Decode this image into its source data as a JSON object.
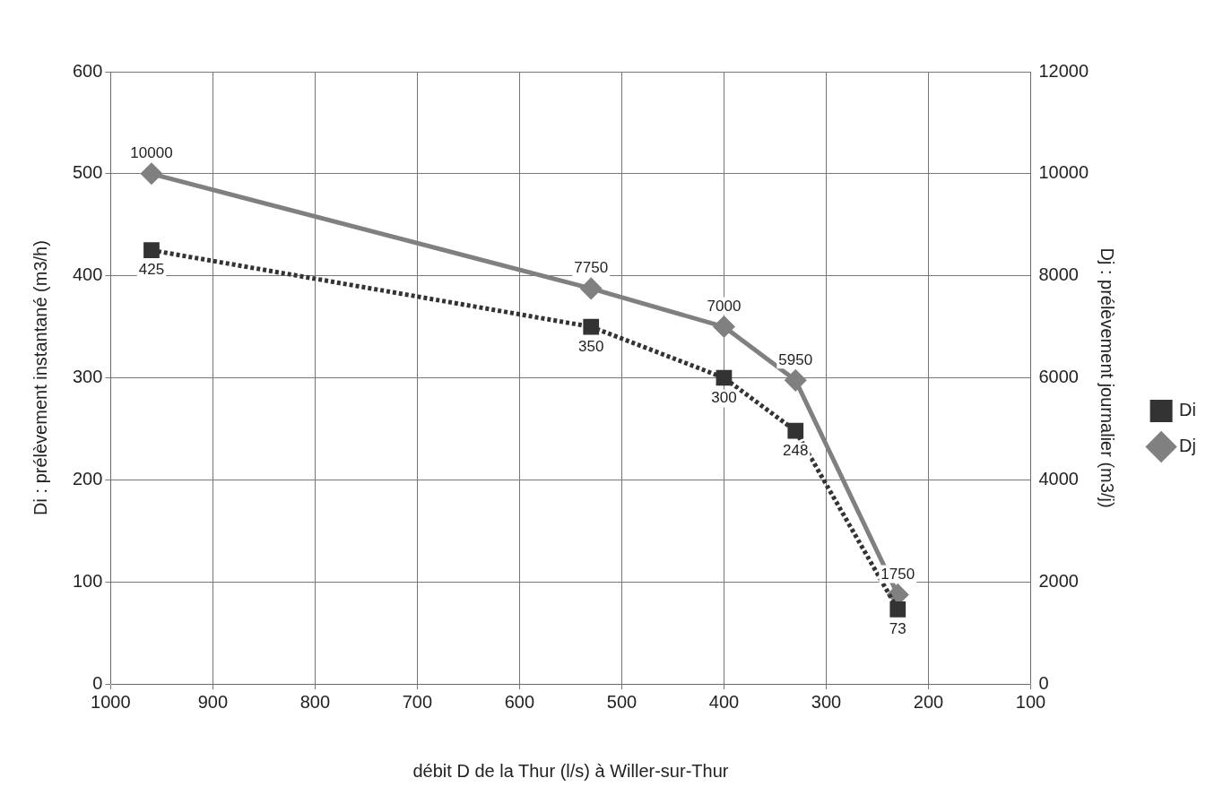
{
  "chart_data": {
    "type": "line",
    "xlabel": "débit D de la Thur (l/s) à Willer-sur-Thur",
    "ylabel": "Di : prélèvement instantané (m3/h)",
    "y2label": "Dj : prélèvement journalier (m3/j)",
    "xlim": [
      1000,
      100
    ],
    "xticks": [
      1000,
      900,
      800,
      700,
      600,
      500,
      400,
      300,
      200,
      100
    ],
    "ylim": [
      0,
      600
    ],
    "yticks": [
      0,
      100,
      200,
      300,
      400,
      500,
      600
    ],
    "y2lim": [
      0,
      12000
    ],
    "y2ticks": [
      0,
      2000,
      4000,
      6000,
      8000,
      10000,
      12000
    ],
    "grid": true,
    "legend": "right",
    "data_labels": true,
    "series": [
      {
        "name": "Di",
        "color": "#333333",
        "marker": "square",
        "line_style": "dotted",
        "x": [
          960,
          530,
          400,
          330,
          230
        ],
        "values": [
          425,
          350,
          300,
          248,
          73
        ]
      },
      {
        "name": "Dj",
        "color": "#808080",
        "marker": "diamond",
        "line_style": "solid",
        "axis": "y2",
        "x": [
          960,
          530,
          400,
          330,
          230
        ],
        "values": [
          10000,
          7750,
          7000,
          5950,
          1750
        ]
      }
    ]
  }
}
